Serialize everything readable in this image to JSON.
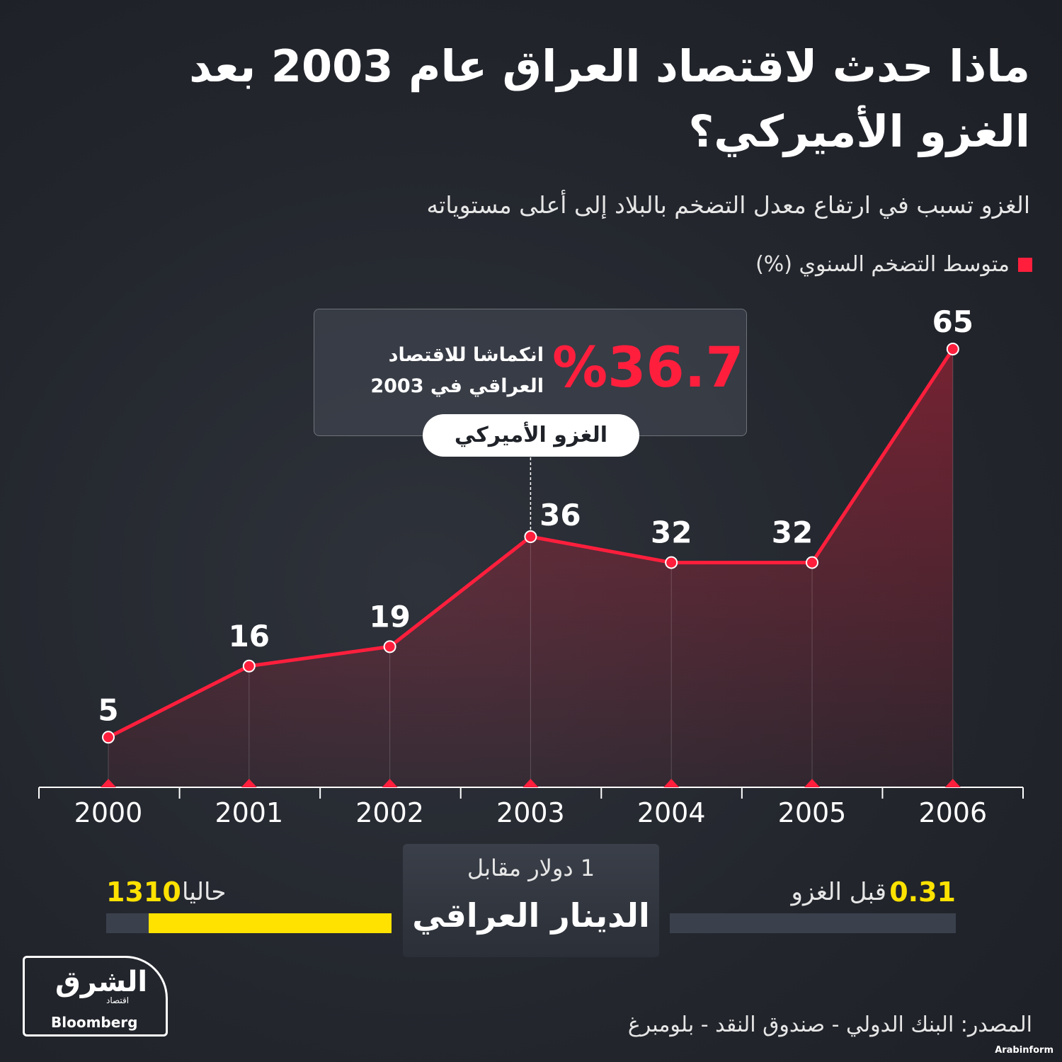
{
  "title": "ماذا حدث لاقتصاد العراق عام 2003 بعد الغزو الأميركي؟",
  "subtitle": "الغزو تسبب في ارتفاع معدل التضخم بالبلاد إلى أعلى مستوياته",
  "legend_label": "متوسط التضخم السنوي (%)",
  "colors": {
    "accent": "#ff1f3d",
    "highlight": "#ffe200",
    "background": "#23262d"
  },
  "chart_data": {
    "type": "line",
    "x": [
      "2000",
      "2001",
      "2002",
      "2003",
      "2004",
      "2005",
      "2006"
    ],
    "series": [
      {
        "name": "متوسط التضخم السنوي (%)",
        "values": [
          5,
          16,
          19,
          36,
          32,
          32,
          65
        ]
      }
    ],
    "data_labels": [
      "5",
      "16",
      "19",
      "36",
      "32",
      "32",
      "65"
    ],
    "ylim": [
      0,
      65
    ],
    "fill": "area",
    "grid": false,
    "annotation_year": "2003"
  },
  "callout": {
    "value": "36.7%",
    "text": "انكماشا للاقتصاد العراقي في 2003"
  },
  "event_label": "الغزو الأميركي",
  "currency": {
    "top_label": "1 دولار مقابل",
    "main_label": "الدينار العراقي",
    "now_label": "حاليا",
    "now_value": "1310",
    "now_fraction": 0.85,
    "before_label": "قبل الغزو",
    "before_value": "0.31",
    "before_fraction": 0
  },
  "logo": {
    "main": "الشرق",
    "sub": "اقتصاد",
    "partner": "Bloomberg"
  },
  "source": "المصدر: البنك الدولي - صندوق النقد - بلومبرغ",
  "credit": "Arabinform"
}
